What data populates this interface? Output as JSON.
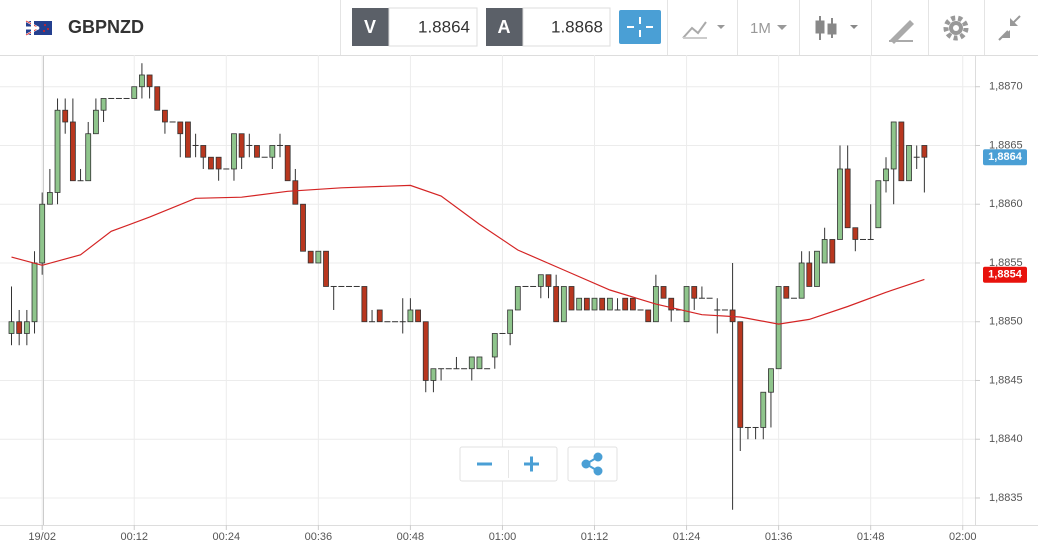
{
  "toolbar": {
    "symbol": "GBPNZD",
    "bid_label": "V",
    "bid": 1.8864,
    "ask_label": "A",
    "ask": 1.8868,
    "interval": "1M"
  },
  "chart_data": {
    "type": "candlestick",
    "x": [
      -4,
      -3,
      -2,
      -1,
      0,
      1,
      2,
      3,
      4,
      5,
      6,
      7,
      8,
      9,
      10,
      11,
      12,
      13,
      14,
      15,
      16,
      17,
      18,
      19,
      20,
      21,
      22,
      23,
      24,
      25,
      26,
      27,
      28,
      29,
      30,
      31,
      32,
      33,
      34,
      35,
      36,
      37,
      38,
      39,
      40,
      41,
      42,
      43,
      44,
      45,
      46,
      47,
      48,
      49,
      50,
      51,
      52,
      53,
      54,
      55,
      56,
      57,
      58,
      59,
      60,
      61,
      62,
      63,
      64,
      65,
      66,
      67,
      68,
      69,
      70,
      71,
      72,
      73,
      74,
      75,
      76,
      77,
      78,
      79,
      80,
      81,
      82,
      83,
      84,
      85,
      86,
      87,
      88,
      89,
      90,
      91,
      92,
      93,
      94,
      95,
      96,
      97,
      98,
      99,
      100,
      101,
      102,
      103,
      104,
      105,
      106,
      107,
      108,
      109,
      110,
      111,
      112,
      113,
      114,
      115
    ],
    "open": [
      1.8849,
      1.885,
      1.8849,
      1.885,
      1.8855,
      1.886,
      1.8861,
      1.8868,
      1.8867,
      1.8862,
      1.8862,
      1.8866,
      1.8868,
      1.8869,
      1.8869,
      1.8869,
      1.8869,
      1.887,
      1.8871,
      1.887,
      1.8868,
      1.8867,
      1.8867,
      1.8867,
      1.8865,
      1.8865,
      1.8864,
      1.8864,
      1.8863,
      1.8863,
      1.8866,
      1.8865,
      1.8865,
      1.8864,
      1.8864,
      1.8865,
      1.8865,
      1.8862,
      1.886,
      1.8856,
      1.8855,
      1.8856,
      1.8853,
      1.8853,
      1.8853,
      1.8853,
      1.8853,
      1.885,
      1.8851,
      1.885,
      1.885,
      1.885,
      1.885,
      1.8851,
      1.885,
      1.8845,
      1.8846,
      1.8846,
      1.8846,
      1.8846,
      1.8846,
      1.8846,
      1.8846,
      1.8847,
      1.8849,
      1.8849,
      1.8851,
      1.8853,
      1.8853,
      1.8853,
      1.8854,
      1.8853,
      1.885,
      1.8853,
      1.8851,
      1.8852,
      1.8851,
      1.8852,
      1.8851,
      1.8851,
      1.8852,
      1.8852,
      1.8851,
      1.8851,
      1.885,
      1.8853,
      1.8852,
      1.8851,
      1.885,
      1.8853,
      1.8852,
      1.8852,
      1.8851,
      1.8851,
      1.8851,
      1.885,
      1.8841,
      1.8841,
      1.8841,
      1.8844,
      1.8846,
      1.8853,
      1.8852,
      1.8852,
      1.8855,
      1.8853,
      1.8855,
      1.8857,
      1.8857,
      1.8863,
      1.8858,
      1.8857,
      1.8857,
      1.8858,
      1.8862,
      1.8863,
      1.8867,
      1.8862,
      1.8864,
      1.8865
    ],
    "high": [
      1.8853,
      1.8851,
      1.8851,
      1.8856,
      1.8861,
      1.8863,
      1.8869,
      1.8869,
      1.8869,
      1.8863,
      1.8867,
      1.8869,
      1.8869,
      1.8869,
      1.8869,
      1.8869,
      1.887,
      1.8872,
      1.8871,
      1.887,
      1.8868,
      1.8867,
      1.8867,
      1.8867,
      1.8866,
      1.8865,
      1.8864,
      1.8864,
      1.8863,
      1.8866,
      1.8866,
      1.8866,
      1.8865,
      1.8864,
      1.8865,
      1.8866,
      1.8865,
      1.8863,
      1.886,
      1.8856,
      1.8856,
      1.8856,
      1.8853,
      1.8853,
      1.8853,
      1.8853,
      1.8853,
      1.8851,
      1.8851,
      1.885,
      1.885,
      1.8852,
      1.8852,
      1.8851,
      1.885,
      1.8846,
      1.8846,
      1.8846,
      1.8847,
      1.8846,
      1.8847,
      1.8847,
      1.8846,
      1.8849,
      1.8849,
      1.8851,
      1.8853,
      1.8853,
      1.8853,
      1.8854,
      1.8854,
      1.8854,
      1.8853,
      1.8853,
      1.8852,
      1.8852,
      1.8852,
      1.8852,
      1.8852,
      1.8852,
      1.8852,
      1.8852,
      1.8851,
      1.8851,
      1.8854,
      1.8853,
      1.8852,
      1.8851,
      1.8853,
      1.8853,
      1.8853,
      1.8852,
      1.8852,
      1.8851,
      1.8855,
      1.885,
      1.8841,
      1.8841,
      1.8844,
      1.8846,
      1.8853,
      1.8853,
      1.8852,
      1.8856,
      1.8856,
      1.8856,
      1.8858,
      1.8857,
      1.8865,
      1.8865,
      1.8858,
      1.8857,
      1.886,
      1.8862,
      1.8864,
      1.8867,
      1.8867,
      1.8865,
      1.8865,
      1.8865
    ],
    "low": [
      1.8848,
      1.8848,
      1.8848,
      1.8849,
      1.8854,
      1.886,
      1.886,
      1.8866,
      1.8862,
      1.8862,
      1.8862,
      1.8866,
      1.8867,
      1.8869,
      1.8869,
      1.8869,
      1.8869,
      1.8869,
      1.8869,
      1.8868,
      1.8866,
      1.8867,
      1.8864,
      1.8864,
      1.8864,
      1.8863,
      1.8863,
      1.8862,
      1.8863,
      1.8862,
      1.8863,
      1.8864,
      1.8864,
      1.8864,
      1.8863,
      1.8864,
      1.8862,
      1.886,
      1.8856,
      1.8855,
      1.8855,
      1.8853,
      1.8851,
      1.8853,
      1.8853,
      1.8853,
      1.885,
      1.885,
      1.885,
      1.885,
      1.885,
      1.8849,
      1.885,
      1.885,
      1.8844,
      1.8844,
      1.8845,
      1.8846,
      1.8846,
      1.8846,
      1.8845,
      1.8846,
      1.8846,
      1.8846,
      1.8849,
      1.8848,
      1.8851,
      1.8853,
      1.8853,
      1.8852,
      1.8852,
      1.885,
      1.885,
      1.8851,
      1.8851,
      1.8851,
      1.8851,
      1.8851,
      1.8851,
      1.8851,
      1.8851,
      1.8851,
      1.8851,
      1.885,
      1.885,
      1.8852,
      1.885,
      1.8851,
      1.885,
      1.8851,
      1.8852,
      1.8852,
      1.8849,
      1.8851,
      1.8834,
      1.8839,
      1.884,
      1.884,
      1.884,
      1.8841,
      1.8846,
      1.8852,
      1.8852,
      1.8852,
      1.8853,
      1.8853,
      1.8855,
      1.8855,
      1.8857,
      1.8858,
      1.8856,
      1.8857,
      1.8857,
      1.8858,
      1.8861,
      1.886,
      1.8862,
      1.8862,
      1.8863,
      1.8861
    ],
    "close": [
      1.885,
      1.8849,
      1.885,
      1.8855,
      1.886,
      1.8861,
      1.8868,
      1.8867,
      1.8862,
      1.8862,
      1.8866,
      1.8868,
      1.8869,
      1.8869,
      1.8869,
      1.8869,
      1.887,
      1.8871,
      1.887,
      1.8868,
      1.8867,
      1.8867,
      1.8866,
      1.8864,
      1.8865,
      1.8864,
      1.8863,
      1.8863,
      1.8863,
      1.8866,
      1.8864,
      1.8865,
      1.8864,
      1.8864,
      1.8865,
      1.8865,
      1.8862,
      1.886,
      1.8856,
      1.8855,
      1.8856,
      1.8853,
      1.8853,
      1.8853,
      1.8853,
      1.8853,
      1.885,
      1.885,
      1.885,
      1.885,
      1.885,
      1.885,
      1.8851,
      1.885,
      1.8845,
      1.8846,
      1.8846,
      1.8846,
      1.8846,
      1.8846,
      1.8847,
      1.8847,
      1.8846,
      1.8849,
      1.8849,
      1.8851,
      1.8853,
      1.8853,
      1.8853,
      1.8854,
      1.8853,
      1.885,
      1.8853,
      1.8851,
      1.8852,
      1.8851,
      1.8852,
      1.8851,
      1.8852,
      1.8851,
      1.8851,
      1.8851,
      1.8851,
      1.885,
      1.8853,
      1.8852,
      1.8851,
      1.8851,
      1.8853,
      1.8852,
      1.8852,
      1.8852,
      1.8851,
      1.8851,
      1.885,
      1.8841,
      1.8841,
      1.8841,
      1.8844,
      1.8846,
      1.8853,
      1.8852,
      1.8852,
      1.8855,
      1.8853,
      1.8856,
      1.8857,
      1.8855,
      1.8863,
      1.8858,
      1.8857,
      1.8857,
      1.8857,
      1.8862,
      1.8863,
      1.8867,
      1.8862,
      1.8865,
      1.8864,
      1.8864
    ],
    "up_color": "#8fc58c",
    "down_color": "#b8371f",
    "flat_color": "#333333",
    "overlay": {
      "type": "line",
      "color": "#d42424",
      "x": [
        -4,
        0,
        5,
        9,
        14,
        20,
        26,
        32,
        39,
        48,
        52,
        57,
        62,
        68,
        74,
        80,
        86,
        91,
        96,
        100,
        105,
        110,
        115
      ],
      "values": [
        1.88555,
        1.88548,
        1.88557,
        1.88577,
        1.88589,
        1.88605,
        1.88606,
        1.88611,
        1.88614,
        1.88616,
        1.88607,
        1.88583,
        1.88561,
        1.88544,
        1.88527,
        1.88515,
        1.88506,
        1.88504,
        1.88498,
        1.88502,
        1.88513,
        1.88525,
        1.88536
      ]
    },
    "price_labels": [
      {
        "value": 1.8864,
        "label": "1,8864",
        "color": "#4a9fd5"
      },
      {
        "value": 1.8854,
        "label": "1,8854",
        "color": "#e8120c"
      }
    ],
    "ylim": [
      1.88327,
      1.88727
    ],
    "yticks": [
      {
        "value": 1.8835,
        "label": "1,8835"
      },
      {
        "value": 1.884,
        "label": "1,8840"
      },
      {
        "value": 1.8845,
        "label": "1,8845"
      },
      {
        "value": 1.885,
        "label": "1,8850"
      },
      {
        "value": 1.8855,
        "label": "1,8855"
      },
      {
        "value": 1.886,
        "label": "1,8860"
      },
      {
        "value": 1.8865,
        "label": "1,8865"
      },
      {
        "value": 1.887,
        "label": "1,8870"
      }
    ],
    "xlim": [
      -5.5,
      121.6
    ],
    "xticks": [
      {
        "value": 0,
        "label": "19/02"
      },
      {
        "value": 12,
        "label": "00:12"
      },
      {
        "value": 24,
        "label": "00:24"
      },
      {
        "value": 36,
        "label": "00:36"
      },
      {
        "value": 48,
        "label": "00:48"
      },
      {
        "value": 60,
        "label": "01:00"
      },
      {
        "value": 72,
        "label": "01:12"
      },
      {
        "value": 84,
        "label": "01:24"
      },
      {
        "value": 96,
        "label": "01:36"
      },
      {
        "value": 108,
        "label": "01:48"
      },
      {
        "value": 120,
        "label": "02:00"
      }
    ],
    "grid": true
  }
}
